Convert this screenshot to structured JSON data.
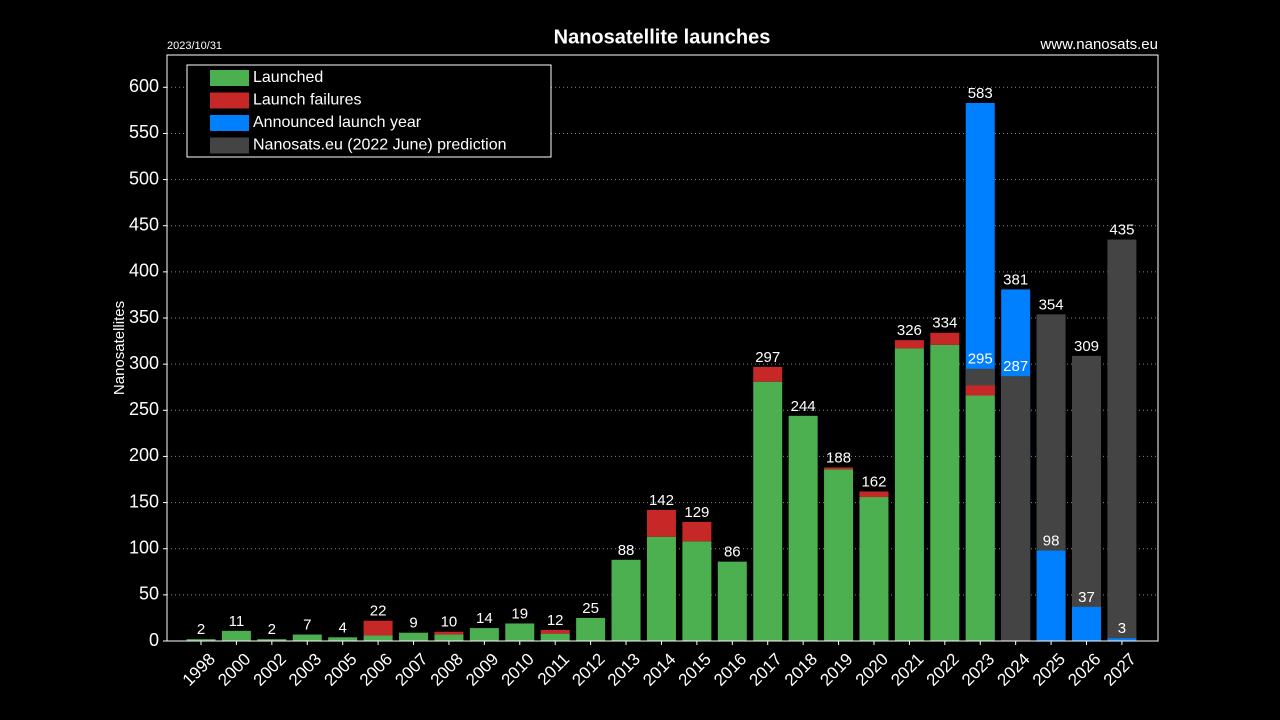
{
  "chart_data": {
    "type": "bar",
    "title": "Nanosatellite launches",
    "date_note": "2023/10/31",
    "source": "www.nanosats.eu",
    "ylabel": "Nanosatellites",
    "categories": [
      "1998",
      "2000",
      "2002",
      "2003",
      "2005",
      "2006",
      "2007",
      "2008",
      "2009",
      "2010",
      "2011",
      "2012",
      "2013",
      "2014",
      "2015",
      "2016",
      "2017",
      "2018",
      "2019",
      "2020",
      "2021",
      "2022",
      "2023",
      "2024",
      "2025",
      "2026",
      "2027"
    ],
    "series": [
      {
        "name": "Launched",
        "color": "#4caf50",
        "stack": true,
        "values": [
          2,
          11,
          2,
          7,
          4,
          6,
          9,
          7,
          14,
          19,
          8,
          25,
          88,
          113,
          108,
          86,
          281,
          244,
          186,
          156,
          317,
          321,
          266,
          null,
          null,
          null,
          null
        ]
      },
      {
        "name": "Launch failures",
        "color": "#c62828",
        "stack": true,
        "values": [
          0,
          0,
          0,
          0,
          0,
          16,
          0,
          3,
          0,
          0,
          4,
          0,
          0,
          29,
          21,
          0,
          16,
          0,
          2,
          6,
          9,
          13,
          11,
          null,
          null,
          null,
          null
        ]
      },
      {
        "name": "Announced launch year",
        "color": "#0080ff",
        "stack": false,
        "values": [
          null,
          null,
          null,
          null,
          null,
          null,
          null,
          null,
          null,
          null,
          null,
          null,
          null,
          null,
          null,
          null,
          null,
          null,
          null,
          null,
          null,
          null,
          583,
          381,
          98,
          37,
          3
        ]
      },
      {
        "name": "Nanosats.eu (2022 June) prediction",
        "color": "#444444",
        "stack": false,
        "values": [
          null,
          null,
          null,
          null,
          null,
          null,
          null,
          null,
          null,
          null,
          null,
          null,
          null,
          null,
          null,
          null,
          null,
          null,
          null,
          null,
          null,
          null,
          295,
          287,
          354,
          309,
          435
        ]
      }
    ],
    "totals": [
      2,
      11,
      2,
      7,
      4,
      22,
      9,
      10,
      14,
      19,
      12,
      25,
      88,
      142,
      129,
      86,
      297,
      244,
      188,
      162,
      326,
      334,
      null,
      null,
      null,
      null,
      null
    ],
    "ylim": [
      0,
      635
    ],
    "yticks": [
      0,
      50,
      100,
      150,
      200,
      250,
      300,
      350,
      400,
      450,
      500,
      550,
      600
    ],
    "grid": true,
    "legend": "upper left"
  }
}
